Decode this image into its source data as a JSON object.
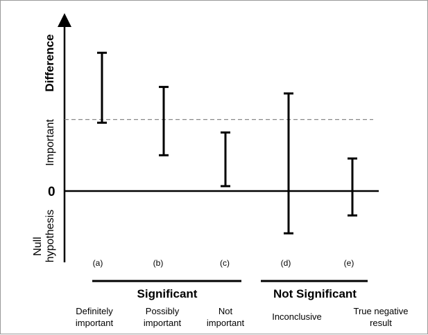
{
  "diagram": {
    "y_axis": {
      "zero_label": "0",
      "label_difference": "Difference",
      "label_important": "Important",
      "label_null_line1": "Null",
      "label_null_line2": "hypothesis"
    },
    "intervals": [
      {
        "letter": "(a)",
        "low": 0.42,
        "high": 0.85
      },
      {
        "letter": "(b)",
        "low": 0.22,
        "high": 0.64
      },
      {
        "letter": "(c)",
        "low": 0.03,
        "high": 0.36
      },
      {
        "letter": "(d)",
        "low": -0.26,
        "high": 0.6
      },
      {
        "letter": "(e)",
        "low": -0.15,
        "high": 0.2
      }
    ],
    "important_threshold": 0.44,
    "groups": [
      {
        "label": "Significant"
      },
      {
        "label": "Not Significant"
      }
    ],
    "descriptions": [
      {
        "line1": "Definitely",
        "line2": "important"
      },
      {
        "line1": "Possibly",
        "line2": "important"
      },
      {
        "line1": "Not",
        "line2": "important"
      },
      {
        "line1": "Inconclusive",
        "line2": ""
      },
      {
        "line1": "True negative",
        "line2": "result"
      }
    ]
  }
}
